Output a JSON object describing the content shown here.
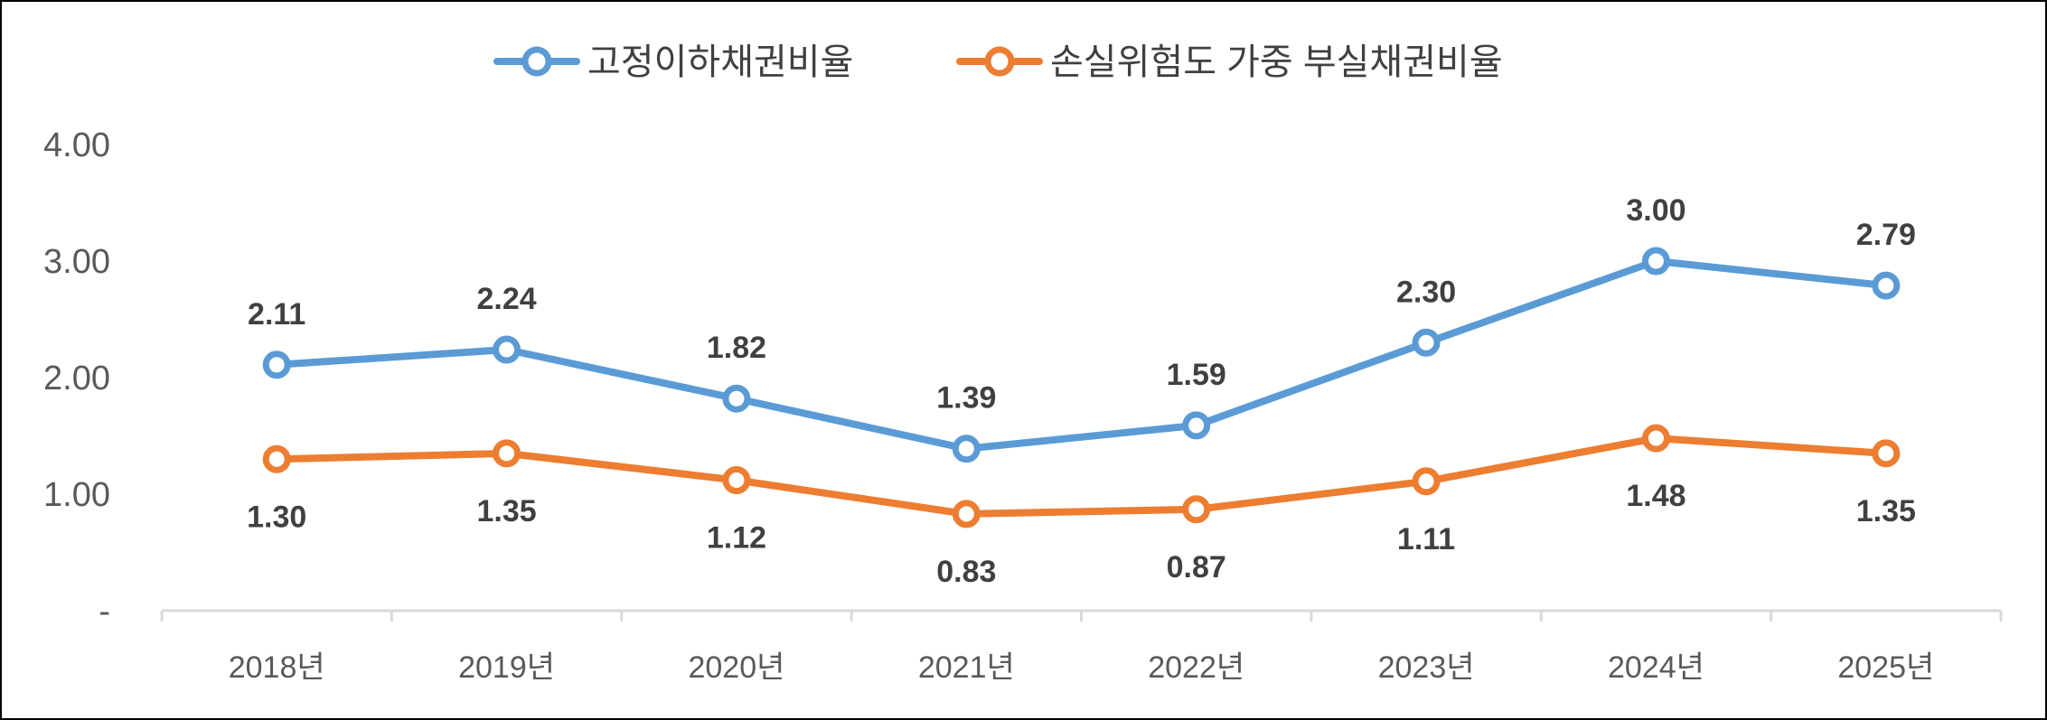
{
  "chart_data": {
    "type": "line",
    "categories": [
      "2018년",
      "2019년",
      "2020년",
      "2021년",
      "2022년",
      "2023년",
      "2024년",
      "2025년"
    ],
    "series": [
      {
        "name": "고정이하채권비율",
        "color": "#5B9BD5",
        "values": [
          2.11,
          2.24,
          1.82,
          1.39,
          1.59,
          2.3,
          3.0,
          2.79
        ],
        "labels": [
          "2.11",
          "2.24",
          "1.82",
          "1.39",
          "1.59",
          "2.30",
          "3.00",
          "2.79"
        ],
        "label_position": "above"
      },
      {
        "name": "손실위험도 가중 부실채권비율",
        "color": "#ED7D31",
        "values": [
          1.3,
          1.35,
          1.12,
          0.83,
          0.87,
          1.11,
          1.48,
          1.35
        ],
        "labels": [
          "1.30",
          "1.35",
          "1.12",
          "0.83",
          "0.87",
          "1.11",
          "1.48",
          "1.35"
        ],
        "label_position": "below"
      }
    ],
    "y_ticks": [
      {
        "value": 0,
        "label": "-"
      },
      {
        "value": 1,
        "label": "1.00"
      },
      {
        "value": 2,
        "label": "2.00"
      },
      {
        "value": 3,
        "label": "3.00"
      },
      {
        "value": 4,
        "label": "4.00"
      }
    ],
    "ylim": [
      0,
      4
    ],
    "grid": false,
    "legend_position": "top",
    "axis_color": "#D9D9D9"
  }
}
